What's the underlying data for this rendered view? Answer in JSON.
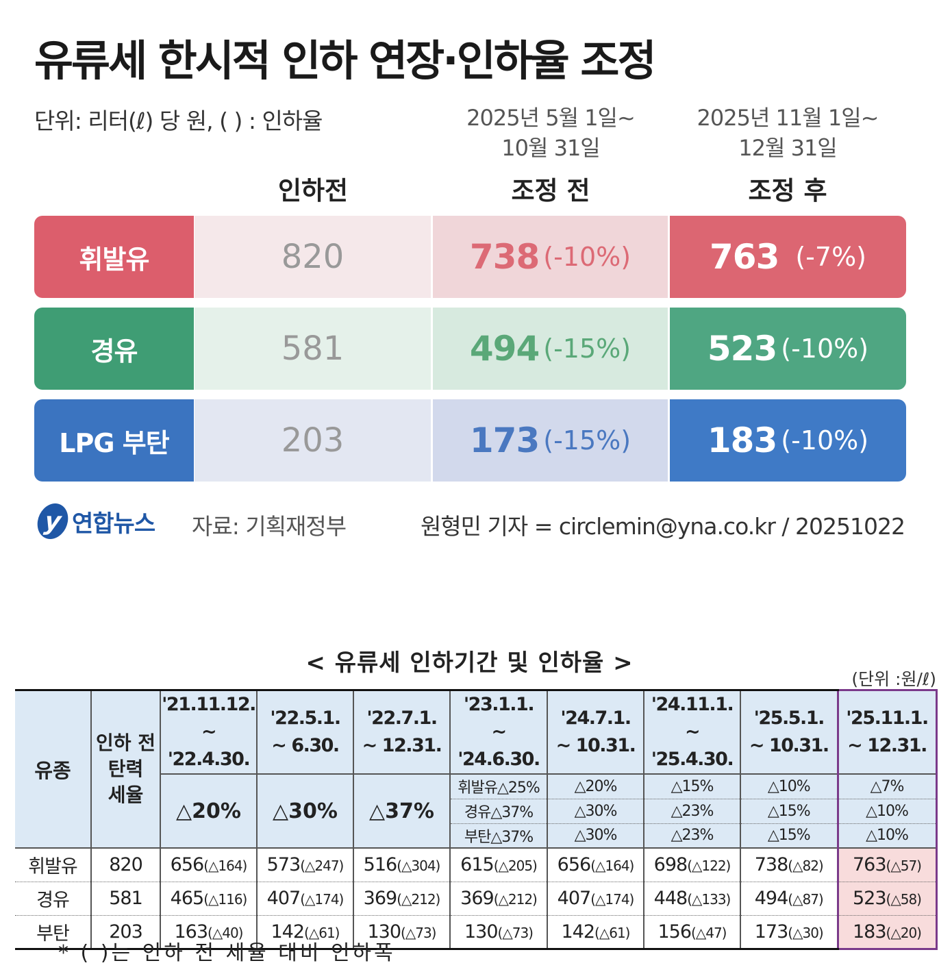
{
  "title": "유류세 한시적 인하 연장·인하율 조정",
  "unit_note": "단위: 리터(ℓ) 당 원, ( ) : 인하율",
  "periods": {
    "adj1_line1": "2025년 5월 1일~",
    "adj1_line2": "10월 31일",
    "adj2_line1": "2025년 11월 1일~",
    "adj2_line2": "12월 31일"
  },
  "columns": {
    "before": "인하전",
    "adj1": "조정 전",
    "adj2": "조정 후"
  },
  "fuels": [
    {
      "name": "휘발유",
      "before": "820",
      "adj1_value": "738",
      "adj1_pct": "(-10%)",
      "adj2_value": "763",
      "adj2_pct": "(-7%)"
    },
    {
      "name": "경유",
      "before": "581",
      "adj1_value": "494",
      "adj1_pct": "(-15%)",
      "adj2_value": "523",
      "adj2_pct": "(-10%)"
    },
    {
      "name": "LPG 부탄",
      "before": "203",
      "adj1_value": "173",
      "adj1_pct": "(-15%)",
      "adj2_value": "183",
      "adj2_pct": "(-10%)"
    }
  ],
  "colors": {
    "gasoline": "#dc6672",
    "diesel": "#4fa682",
    "lpg": "#3f7ac6",
    "brand": "#1f57a6"
  },
  "logo": {
    "mark": "y",
    "text": "연합뉴스"
  },
  "source": "자료: 기획재정부",
  "credit": "원형민 기자 = circlemin@yna.co.kr / 20251022",
  "table2": {
    "title": "< 유류세 인하기간 및 인하율 >",
    "unit": "(단위 :원/ℓ)",
    "header_fuel": "유종",
    "header_base_1": "인하 전",
    "header_base_2": "탄력",
    "header_base_3": "세율",
    "periods": [
      {
        "l1": "'21.11.12.",
        "l2": "~ '22.4.30."
      },
      {
        "l1": "'22.5.1.",
        "l2": "~ 6.30."
      },
      {
        "l1": "'22.7.1.",
        "l2": "~ 12.31."
      },
      {
        "l1": "'23.1.1.",
        "l2": "~ '24.6.30."
      },
      {
        "l1": "'24.7.1.",
        "l2": "~ 10.31."
      },
      {
        "l1": "'24.11.1.",
        "l2": "~ '25.4.30."
      },
      {
        "l1": "'25.5.1.",
        "l2": "~ 10.31."
      },
      {
        "l1": "'25.11.1.",
        "l2": "~ 12.31."
      }
    ],
    "rates_single": [
      "△20%",
      "△30%",
      "△37%"
    ],
    "rates_rows": [
      [
        "휘발유△25%",
        "△20%",
        "△15%",
        "△10%",
        "△7%"
      ],
      [
        "경유△37%",
        "△30%",
        "△23%",
        "△15%",
        "△10%"
      ],
      [
        "부탄△37%",
        "△30%",
        "△23%",
        "△15%",
        "△10%"
      ]
    ],
    "rows": [
      {
        "fuel": "휘발유",
        "base": "820",
        "vals": [
          [
            "656",
            "(△164)"
          ],
          [
            "573",
            "(△247)"
          ],
          [
            "516",
            "(△304)"
          ],
          [
            "615",
            "(△205)"
          ],
          [
            "656",
            "(△164)"
          ],
          [
            "698",
            "(△122)"
          ],
          [
            "738",
            "(△82)"
          ],
          [
            "763",
            "(△57)"
          ]
        ]
      },
      {
        "fuel": "경유",
        "base": "581",
        "vals": [
          [
            "465",
            "(△116)"
          ],
          [
            "407",
            "(△174)"
          ],
          [
            "369",
            "(△212)"
          ],
          [
            "369",
            "(△212)"
          ],
          [
            "407",
            "(△174)"
          ],
          [
            "448",
            "(△133)"
          ],
          [
            "494",
            "(△87)"
          ],
          [
            "523",
            "(△58)"
          ]
        ]
      },
      {
        "fuel": "부탄",
        "base": "203",
        "vals": [
          [
            "163",
            "(△40)"
          ],
          [
            "142",
            "(△61)"
          ],
          [
            "130",
            "(△73)"
          ],
          [
            "130",
            "(△73)"
          ],
          [
            "142",
            "(△61)"
          ],
          [
            "156",
            "(△47)"
          ],
          [
            "173",
            "(△30)"
          ],
          [
            "183",
            "(△20)"
          ]
        ]
      }
    ],
    "footnote": "* ( )는 인하 전 세율 대비 인하폭"
  }
}
